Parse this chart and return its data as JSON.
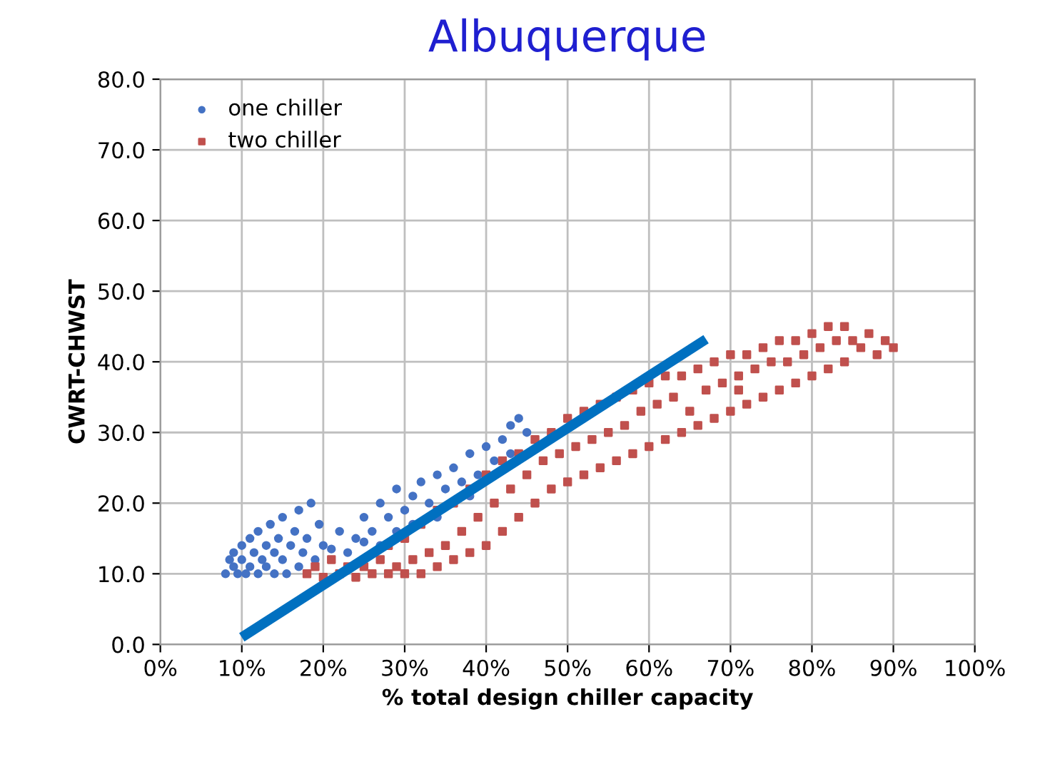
{
  "chart_data": {
    "type": "scatter",
    "title": "Albuquerque",
    "xlabel": "% total design chiller capacity",
    "ylabel": "CWRT-CHWST",
    "xlim": [
      0,
      100
    ],
    "xticks": [
      {
        "value": 0,
        "label": "0%"
      },
      {
        "value": 10,
        "label": "10%"
      },
      {
        "value": 20,
        "label": "20%"
      },
      {
        "value": 30,
        "label": "30%"
      },
      {
        "value": 40,
        "label": "40%"
      },
      {
        "value": 50,
        "label": "50%"
      },
      {
        "value": 60,
        "label": "60%"
      },
      {
        "value": 70,
        "label": "70%"
      },
      {
        "value": 80,
        "label": "80%"
      },
      {
        "value": 90,
        "label": "90%"
      },
      {
        "value": 100,
        "label": "100%"
      }
    ],
    "ylim": [
      0,
      80
    ],
    "yticks": [
      {
        "value": 0,
        "label": "0.0"
      },
      {
        "value": 10,
        "label": "10.0"
      },
      {
        "value": 20,
        "label": "20.0"
      },
      {
        "value": 30,
        "label": "30.0"
      },
      {
        "value": 40,
        "label": "40.0"
      },
      {
        "value": 50,
        "label": "50.0"
      },
      {
        "value": 60,
        "label": "60.0"
      },
      {
        "value": 70,
        "label": "70.0"
      },
      {
        "value": 80,
        "label": "80.0"
      }
    ],
    "grid": true,
    "legend": "top left",
    "series": [
      {
        "name": "one chiller",
        "color": "#4472c4",
        "marker": "circle",
        "x": [
          8,
          8.5,
          9,
          9,
          9.5,
          10,
          10,
          10.5,
          11,
          11,
          11.5,
          12,
          12,
          12.5,
          13,
          13,
          13.5,
          14,
          14,
          14.5,
          15,
          15,
          15.5,
          16,
          16.5,
          17,
          17,
          17.5,
          18,
          18.5,
          19,
          19.5,
          20,
          21,
          22,
          23,
          24,
          25,
          25,
          26,
          27,
          27,
          28,
          29,
          29,
          30,
          31,
          31,
          32,
          33,
          34,
          34,
          35,
          36,
          37,
          38,
          39,
          40,
          41,
          42,
          43,
          44,
          45,
          43,
          38
        ],
        "values": [
          10,
          12,
          11,
          13,
          10,
          12,
          14,
          10,
          11,
          15,
          13,
          10,
          16,
          12,
          11,
          14,
          17,
          10,
          13,
          15,
          12,
          18,
          10,
          14,
          16,
          11,
          19,
          13,
          15,
          20,
          12,
          17,
          14,
          13.5,
          16,
          13,
          15,
          14.5,
          18,
          16,
          20,
          14,
          18,
          22,
          16,
          19,
          21,
          17,
          23,
          20,
          24,
          18,
          22,
          25,
          23,
          27,
          24,
          28,
          26,
          29,
          31,
          32,
          30,
          27,
          21
        ]
      },
      {
        "name": "two chiller",
        "color": "#c0504d",
        "marker": "square",
        "x": [
          18,
          19,
          20,
          21,
          22,
          23,
          24,
          25,
          26,
          27,
          28,
          28,
          29,
          30,
          30,
          31,
          32,
          32,
          33,
          34,
          34,
          35,
          36,
          36,
          37,
          38,
          38,
          39,
          40,
          40,
          41,
          42,
          42,
          43,
          44,
          44,
          45,
          46,
          46,
          47,
          48,
          48,
          49,
          50,
          50,
          51,
          52,
          52,
          53,
          54,
          54,
          55,
          56,
          56,
          57,
          58,
          58,
          59,
          60,
          60,
          61,
          62,
          62,
          63,
          64,
          64,
          65,
          66,
          66,
          67,
          68,
          68,
          69,
          70,
          70,
          71,
          72,
          72,
          73,
          74,
          74,
          75,
          76,
          76,
          77,
          78,
          78,
          79,
          80,
          80,
          81,
          82,
          82,
          83,
          84,
          84,
          85,
          86,
          87,
          88,
          89,
          90,
          71
        ],
        "values": [
          10,
          11,
          9.5,
          12,
          10,
          11,
          9.5,
          11,
          10,
          12,
          10,
          14,
          11,
          10,
          15,
          12,
          10,
          17,
          13,
          11,
          19,
          14,
          12,
          20,
          16,
          13,
          22,
          18,
          14,
          24,
          20,
          16,
          26,
          22,
          18,
          27,
          24,
          20,
          29,
          26,
          22,
          30,
          27,
          23,
          32,
          28,
          24,
          33,
          29,
          25,
          34,
          30,
          26,
          35,
          31,
          27,
          36,
          33,
          28,
          37,
          34,
          29,
          38,
          35,
          30,
          38,
          33,
          31,
          39,
          36,
          32,
          40,
          37,
          33,
          41,
          38,
          34,
          41,
          39,
          35,
          42,
          40,
          36,
          43,
          40,
          37,
          43,
          41,
          38,
          44,
          42,
          39,
          45,
          43,
          40,
          45,
          43,
          42,
          44,
          41,
          43,
          42,
          36
        ]
      },
      {
        "type": "line",
        "color": "#0070c0",
        "x": [
          10,
          67
        ],
        "values": [
          1.0,
          43.2
        ]
      }
    ]
  }
}
